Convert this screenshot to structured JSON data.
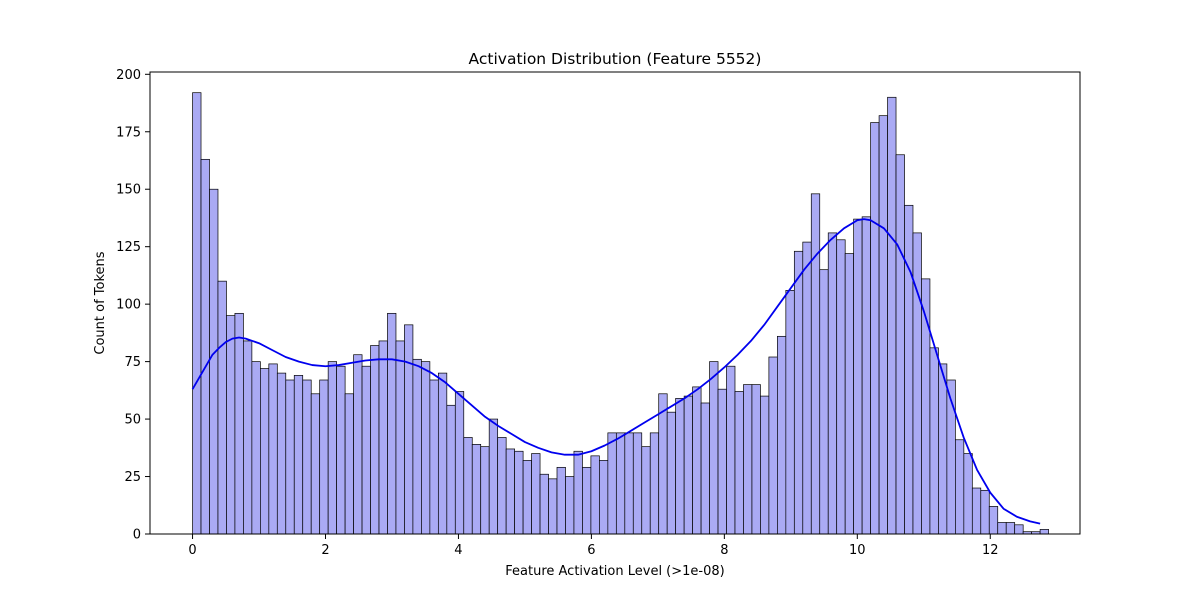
{
  "chart_data": {
    "type": "bar",
    "title": "Activation Distribution (Feature 5552)",
    "xlabel": "Feature Activation Level (>1e-08)",
    "ylabel": "Count of Tokens",
    "xlim": [
      -0.64,
      13.35
    ],
    "ylim": [
      0,
      201
    ],
    "xticks": [
      0,
      2,
      4,
      6,
      8,
      10,
      12
    ],
    "yticks": [
      0,
      25,
      50,
      75,
      100,
      125,
      150,
      175,
      200
    ],
    "grid": false,
    "legend": "none",
    "bin_start": 0.0,
    "bin_width": 0.1275,
    "counts": [
      192,
      163,
      150,
      110,
      95,
      96,
      84,
      75,
      72,
      74,
      70,
      67,
      69,
      67,
      61,
      67,
      75,
      73,
      61,
      78,
      73,
      82,
      84,
      96,
      84,
      91,
      76,
      75,
      67,
      70,
      56,
      62,
      42,
      39,
      38,
      50,
      42,
      37,
      36,
      32,
      35,
      26,
      24,
      29,
      25,
      36,
      29,
      34,
      32,
      44,
      44,
      44,
      44,
      38,
      44,
      61,
      53,
      59,
      60,
      64,
      57,
      75,
      63,
      73,
      62,
      65,
      65,
      60,
      77,
      86,
      106,
      123,
      127,
      148,
      115,
      131,
      128,
      122,
      137,
      138,
      179,
      182,
      190,
      165,
      143,
      131,
      111,
      81,
      74,
      67,
      41,
      35,
      20,
      19,
      12,
      5,
      5,
      4,
      1,
      1,
      2
    ],
    "kde": {
      "x": [
        0.0,
        0.1,
        0.2,
        0.3,
        0.4,
        0.5,
        0.6,
        0.7,
        0.8,
        0.9,
        1.0,
        1.2,
        1.4,
        1.6,
        1.8,
        2.0,
        2.2,
        2.4,
        2.6,
        2.8,
        3.0,
        3.2,
        3.4,
        3.6,
        3.8,
        4.0,
        4.2,
        4.4,
        4.6,
        4.8,
        5.0,
        5.2,
        5.4,
        5.6,
        5.8,
        6.0,
        6.2,
        6.4,
        6.6,
        6.8,
        7.0,
        7.2,
        7.4,
        7.6,
        7.8,
        8.0,
        8.2,
        8.4,
        8.6,
        8.8,
        9.0,
        9.2,
        9.4,
        9.6,
        9.8,
        10.0,
        10.1,
        10.2,
        10.4,
        10.6,
        10.8,
        11.0,
        11.2,
        11.4,
        11.6,
        11.8,
        12.0,
        12.2,
        12.4,
        12.6,
        12.75
      ],
      "y": [
        63,
        68,
        73,
        78,
        81,
        83.5,
        85,
        85.5,
        85,
        84,
        83,
        80,
        77,
        75,
        73.5,
        73,
        73.5,
        74.5,
        75.5,
        76,
        76,
        75,
        73,
        70,
        66,
        61,
        56,
        51,
        47,
        43.5,
        40,
        37.5,
        35.5,
        34.5,
        34.5,
        36,
        38.5,
        41.5,
        45,
        48.5,
        52,
        55.5,
        59,
        63,
        67.5,
        72.5,
        78,
        84,
        91,
        99,
        107,
        115,
        122,
        128,
        133,
        136.5,
        137,
        136.5,
        133,
        126,
        114,
        97,
        78,
        59,
        42,
        28,
        18,
        11,
        7.5,
        5.5,
        4.5
      ]
    },
    "colors": {
      "bar_fill": "#aaaaf4",
      "bar_edge": "#000000",
      "kde": "#0000ee"
    }
  }
}
